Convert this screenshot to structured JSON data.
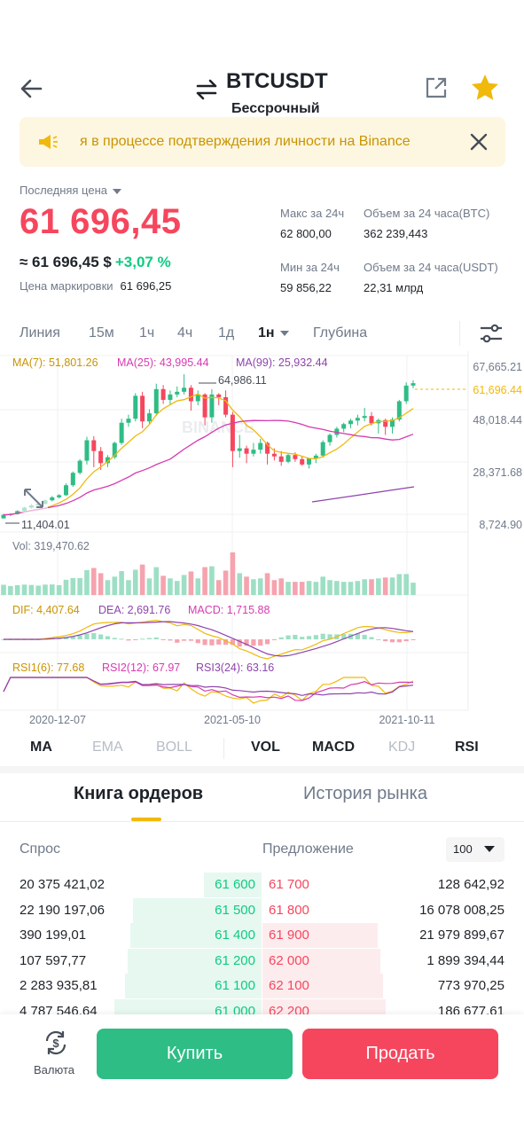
{
  "header": {
    "pair": "BTCUSDT",
    "subtitle": "Бессрочный",
    "icons": [
      "back-arrow-icon",
      "swap-icon",
      "share-icon",
      "star-icon"
    ],
    "star_color": "#f0b90b"
  },
  "banner": {
    "text": "я в процессе подтверждения личности на Binance",
    "bg_color": "#fdf6e0",
    "text_color": "#c99400"
  },
  "price": {
    "last_label": "Последняя цена",
    "last": "61 696,45",
    "approx": "≈ 61 696,45 $",
    "change": "+3,07 %",
    "mark_label": "Цена маркировки",
    "mark_value": "61 696,25",
    "red": "#f6465d",
    "green": "#0ecb81"
  },
  "stats": {
    "high_label": "Макс за 24ч",
    "high_value": "62 800,00",
    "vol_btc_label": "Объем за 24 часа(BTC)",
    "vol_btc_value": "362 239,443",
    "low_label": "Мин за 24ч",
    "low_value": "59 856,22",
    "vol_usdt_label": "Объем за 24 часа(USDT)",
    "vol_usdt_value": "22,31 млрд"
  },
  "intervals": {
    "items": [
      "Линия",
      "15м",
      "1ч",
      "4ч",
      "1д",
      "1н",
      "Глубина"
    ],
    "active": "1н"
  },
  "chart": {
    "ma7": "MA(7): 51,801.26",
    "ma25": "MA(25): 43,995.44",
    "ma99": "MA(99): 25,932.44",
    "price_axis": [
      "67,665.21",
      "48,018.44",
      "28,371.68",
      "8,724.90"
    ],
    "current_price_tag": "61,696.44",
    "high_label": "64,986.11",
    "low_label": "11,404.01",
    "vol_label": "Vol: 319,470.62",
    "dif": "DIF: 4,407.64",
    "dea": "DEA: 2,691.76",
    "macd": "MACD: 1,715.88",
    "rsi1": "RSI1(6): 77.68",
    "rsi2": "RSI2(12): 67.97",
    "rsi3": "RSI3(24): 63.16",
    "dates": [
      "2020-12-07",
      "2021-05-10",
      "2021-10-11"
    ],
    "watermark": "BINANCE",
    "colors": {
      "ma7": "#f0b90b",
      "ma25": "#d63bb0",
      "ma99": "#8e44ad",
      "up": "#2ebd85",
      "down": "#f6465d"
    }
  },
  "chart_data": {
    "type": "candlestick",
    "interval": "1w",
    "high": 64986.11,
    "low": 11404.01,
    "ylim": [
      8724.9,
      67665.21
    ],
    "last": 61696.44,
    "candles": [
      {
        "o": 11500,
        "h": 13200,
        "l": 11404,
        "c": 12800
      },
      {
        "o": 12800,
        "h": 13400,
        "l": 12300,
        "c": 13100
      },
      {
        "o": 13100,
        "h": 14500,
        "l": 12900,
        "c": 14200
      },
      {
        "o": 14200,
        "h": 15800,
        "l": 13900,
        "c": 15500
      },
      {
        "o": 15500,
        "h": 16800,
        "l": 15100,
        "c": 16300
      },
      {
        "o": 16300,
        "h": 17200,
        "l": 15900,
        "c": 16900
      },
      {
        "o": 16900,
        "h": 18500,
        "l": 16600,
        "c": 18200
      },
      {
        "o": 18200,
        "h": 19800,
        "l": 17800,
        "c": 19300
      },
      {
        "o": 19300,
        "h": 20500,
        "l": 18900,
        "c": 20100
      },
      {
        "o": 20100,
        "h": 24500,
        "l": 19800,
        "c": 23800
      },
      {
        "o": 23800,
        "h": 28900,
        "l": 23200,
        "c": 28400
      },
      {
        "o": 28400,
        "h": 33500,
        "l": 27800,
        "c": 32900
      },
      {
        "o": 32900,
        "h": 41800,
        "l": 31500,
        "c": 40500
      },
      {
        "o": 40500,
        "h": 42000,
        "l": 30500,
        "c": 36500
      },
      {
        "o": 36500,
        "h": 38000,
        "l": 29500,
        "c": 32000
      },
      {
        "o": 32000,
        "h": 35000,
        "l": 30500,
        "c": 34200
      },
      {
        "o": 34200,
        "h": 40000,
        "l": 33500,
        "c": 39500
      },
      {
        "o": 39500,
        "h": 48500,
        "l": 38800,
        "c": 47000
      },
      {
        "o": 47000,
        "h": 50000,
        "l": 45500,
        "c": 48500
      },
      {
        "o": 48500,
        "h": 58000,
        "l": 47500,
        "c": 57000
      },
      {
        "o": 57000,
        "h": 58500,
        "l": 45000,
        "c": 47500
      },
      {
        "o": 47500,
        "h": 52000,
        "l": 46500,
        "c": 50500
      },
      {
        "o": 50500,
        "h": 61500,
        "l": 49500,
        "c": 59500
      },
      {
        "o": 59500,
        "h": 61000,
        "l": 54000,
        "c": 55500
      },
      {
        "o": 55500,
        "h": 59000,
        "l": 53500,
        "c": 57500
      },
      {
        "o": 57500,
        "h": 60500,
        "l": 56500,
        "c": 58500
      },
      {
        "o": 58500,
        "h": 64986,
        "l": 57500,
        "c": 60000
      },
      {
        "o": 60000,
        "h": 61000,
        "l": 51500,
        "c": 55000
      },
      {
        "o": 55000,
        "h": 59000,
        "l": 53500,
        "c": 57500
      },
      {
        "o": 57500,
        "h": 58000,
        "l": 46000,
        "c": 49000
      },
      {
        "o": 49000,
        "h": 59500,
        "l": 47000,
        "c": 57500
      },
      {
        "o": 57500,
        "h": 58000,
        "l": 53500,
        "c": 56500
      },
      {
        "o": 56500,
        "h": 59000,
        "l": 49000,
        "c": 50000
      },
      {
        "o": 50000,
        "h": 51000,
        "l": 30500,
        "c": 36500
      },
      {
        "o": 36500,
        "h": 42500,
        "l": 34000,
        "c": 37500
      },
      {
        "o": 37500,
        "h": 38500,
        "l": 32000,
        "c": 35500
      },
      {
        "o": 35500,
        "h": 39500,
        "l": 34500,
        "c": 37000
      },
      {
        "o": 37000,
        "h": 41000,
        "l": 35500,
        "c": 39500
      },
      {
        "o": 39500,
        "h": 40000,
        "l": 31500,
        "c": 35500
      },
      {
        "o": 35500,
        "h": 37500,
        "l": 33000,
        "c": 34500
      },
      {
        "o": 34500,
        "h": 36500,
        "l": 31000,
        "c": 32500
      },
      {
        "o": 32500,
        "h": 35500,
        "l": 32000,
        "c": 35000
      },
      {
        "o": 35000,
        "h": 36000,
        "l": 32500,
        "c": 33500
      },
      {
        "o": 33500,
        "h": 34500,
        "l": 31000,
        "c": 31500
      },
      {
        "o": 31500,
        "h": 34000,
        "l": 30000,
        "c": 33800
      },
      {
        "o": 33800,
        "h": 35500,
        "l": 32000,
        "c": 34800
      },
      {
        "o": 34800,
        "h": 40500,
        "l": 34000,
        "c": 39800
      },
      {
        "o": 39800,
        "h": 43000,
        "l": 38500,
        "c": 42500
      },
      {
        "o": 42500,
        "h": 45500,
        "l": 41500,
        "c": 44800
      },
      {
        "o": 44800,
        "h": 47000,
        "l": 43500,
        "c": 46500
      },
      {
        "o": 46500,
        "h": 48500,
        "l": 45000,
        "c": 47800
      },
      {
        "o": 47800,
        "h": 50000,
        "l": 46000,
        "c": 48800
      },
      {
        "o": 48800,
        "h": 52500,
        "l": 47500,
        "c": 49500
      },
      {
        "o": 49500,
        "h": 51000,
        "l": 46000,
        "c": 46800
      },
      {
        "o": 46800,
        "h": 48500,
        "l": 43000,
        "c": 48000
      },
      {
        "o": 48000,
        "h": 48500,
        "l": 42500,
        "c": 45500
      },
      {
        "o": 45500,
        "h": 49000,
        "l": 43000,
        "c": 48200
      },
      {
        "o": 48200,
        "h": 55500,
        "l": 47500,
        "c": 55000
      },
      {
        "o": 55000,
        "h": 62000,
        "l": 54000,
        "c": 60800
      },
      {
        "o": 60800,
        "h": 62800,
        "l": 59800,
        "c": 61696
      }
    ]
  },
  "indicators": {
    "items": [
      "MA",
      "EMA",
      "BOLL",
      "VOL",
      "MACD",
      "KDJ",
      "RSI"
    ],
    "active": [
      "MA",
      "VOL",
      "MACD",
      "RSI"
    ]
  },
  "orderbook": {
    "tabs": [
      "Книга ордеров",
      "История рынка"
    ],
    "bid_label": "Спрос",
    "ask_label": "Предложение",
    "depth": "100",
    "rows": [
      {
        "bq": "20 375 421,02",
        "bp": "61 600",
        "ap": "61 700",
        "aq": "128 642,92",
        "bf": 0.22,
        "af": 0.0
      },
      {
        "bq": "22 190 197,06",
        "bp": "61 500",
        "ap": "61 800",
        "aq": "16 078 008,25",
        "bf": 0.49,
        "af": 0.0
      },
      {
        "bq": "390 199,01",
        "bp": "61 400",
        "ap": "61 900",
        "aq": "21 979 899,67",
        "bf": 0.5,
        "af": 0.44
      },
      {
        "bq": "107 597,77",
        "bp": "61 200",
        "ap": "62 000",
        "aq": "1 899 394,44",
        "bf": 0.51,
        "af": 0.45
      },
      {
        "bq": "2 283 935,81",
        "bp": "61 100",
        "ap": "62 100",
        "aq": "773 970,25",
        "bf": 0.52,
        "af": 0.46
      },
      {
        "bq": "4 787 546,64",
        "bp": "61 000",
        "ap": "62 200",
        "aq": "186 677,61",
        "bf": 0.56,
        "af": 0.47
      }
    ]
  },
  "bottom": {
    "currency_label": "Валюта",
    "buy": "Купить",
    "sell": "Продать"
  }
}
